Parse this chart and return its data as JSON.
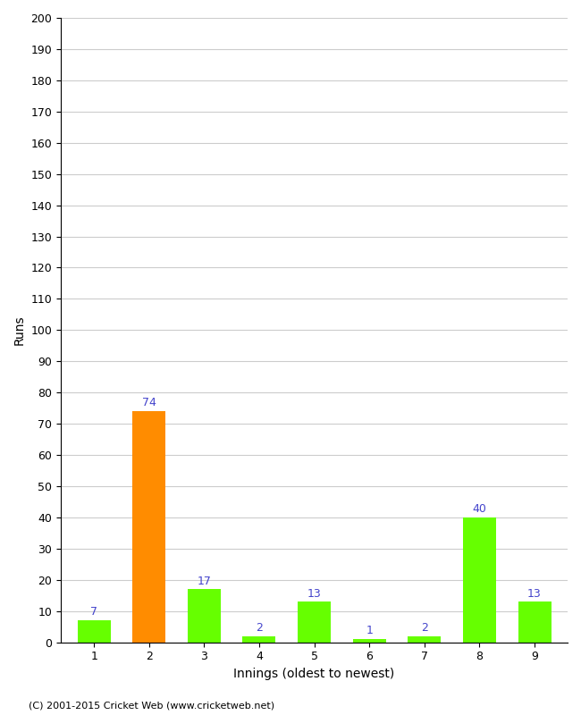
{
  "xlabel": "Innings (oldest to newest)",
  "ylabel": "Runs",
  "categories": [
    "1",
    "2",
    "3",
    "4",
    "5",
    "6",
    "7",
    "8",
    "9"
  ],
  "values": [
    7,
    74,
    17,
    2,
    13,
    1,
    2,
    40,
    13
  ],
  "bar_colors": [
    "#66ff00",
    "#ff8c00",
    "#66ff00",
    "#66ff00",
    "#66ff00",
    "#66ff00",
    "#66ff00",
    "#66ff00",
    "#66ff00"
  ],
  "label_color": "#4444cc",
  "ylim": [
    0,
    200
  ],
  "ytick_interval": 10,
  "background_color": "#ffffff",
  "grid_color": "#cccccc",
  "footer": "(C) 2001-2015 Cricket Web (www.cricketweb.net)"
}
